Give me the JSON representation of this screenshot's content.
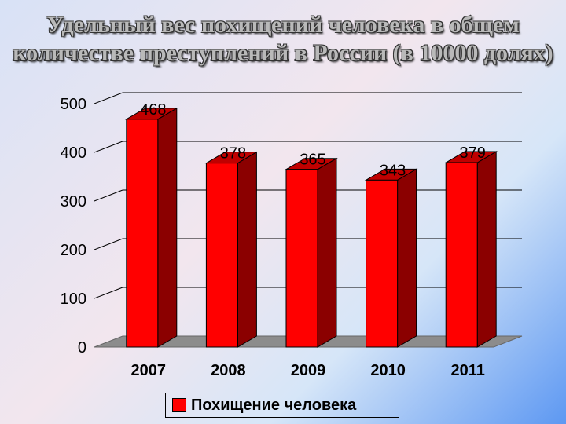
{
  "title": "Удельный вес похищений человека в общем количестве преступлений в России (в 10000 долях)",
  "colors": {
    "bar_front": "#ff0000",
    "bar_side": "#8b0000",
    "bar_top": "#c00000",
    "floor": "#8c8c8c"
  },
  "chart_data": {
    "type": "bar",
    "title": "Удельный вес похищений человека в общем количестве преступлений в России (в 10000 долях)",
    "categories": [
      "2007",
      "2008",
      "2009",
      "2010",
      "2011"
    ],
    "series": [
      {
        "name": "Похищение человека",
        "values": [
          468,
          378,
          365,
          343,
          379
        ]
      }
    ],
    "data_labels": [
      "468",
      "378",
      "365",
      "343",
      "379"
    ],
    "yticks": [
      "0",
      "100",
      "200",
      "300",
      "400",
      "500"
    ],
    "ylim": [
      0,
      500
    ],
    "grid": true,
    "legend": "bottom",
    "style": "3d"
  }
}
